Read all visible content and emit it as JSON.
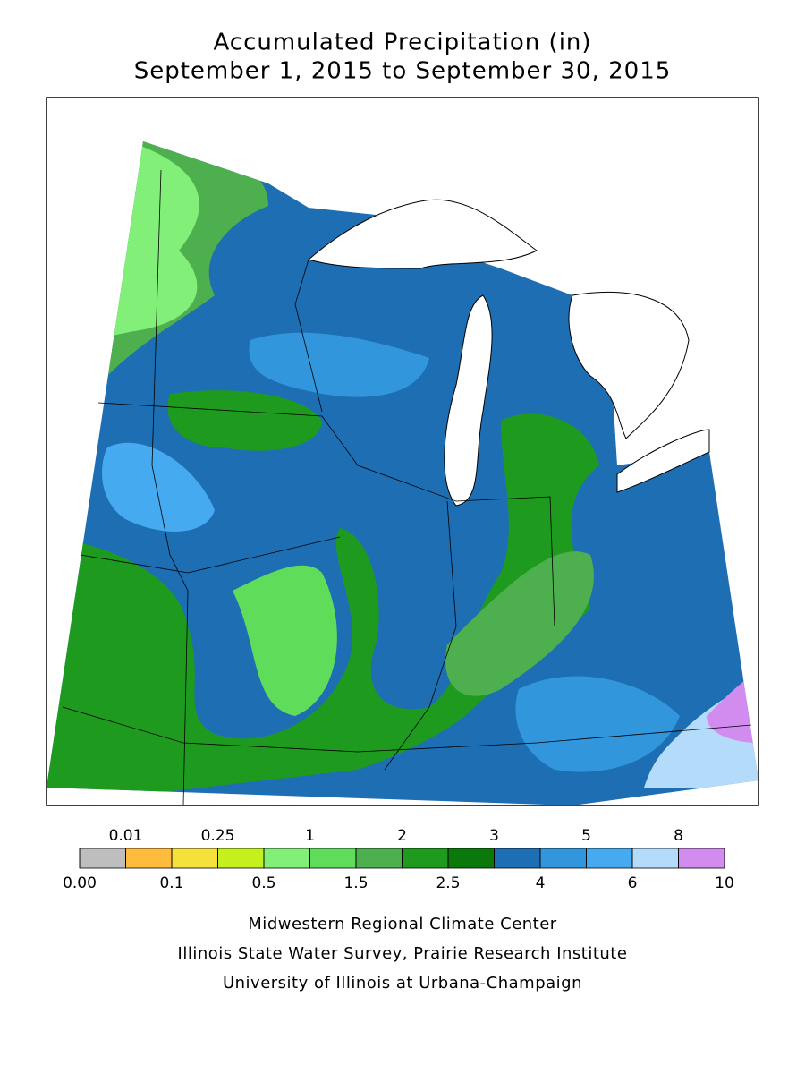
{
  "title": {
    "line1": "Accumulated Precipitation (in)",
    "line2": "September 1, 2015 to September 30, 2015"
  },
  "legend": {
    "colors": [
      "#bebebe",
      "#ffbb3c",
      "#f5e03c",
      "#c4f01e",
      "#82f078",
      "#5fdc5a",
      "#4daf4d",
      "#1e9b1e",
      "#0a780a",
      "#1e6eb4",
      "#3296dc",
      "#46aaf0",
      "#b4dcfa",
      "#d28cf0"
    ],
    "breaks": [
      {
        "value": 0,
        "label": "0.00"
      },
      {
        "value": 0.01,
        "label": "0.01"
      },
      {
        "value": 0.1,
        "label": "0.1"
      },
      {
        "value": 0.25,
        "label": "0.25"
      },
      {
        "value": 0.5,
        "label": "0.5"
      },
      1,
      {
        "value": 1.5,
        "label": "1.5"
      },
      2,
      {
        "value": 2.5,
        "label": "2.5"
      },
      3,
      4,
      5,
      6,
      8,
      10
    ]
  },
  "credits": [
    "Midwestern Regional Climate Center",
    "Illinois State Water Survey, Prairie Research Institute",
    "University of Illinois at Urbana-Champaign"
  ]
}
